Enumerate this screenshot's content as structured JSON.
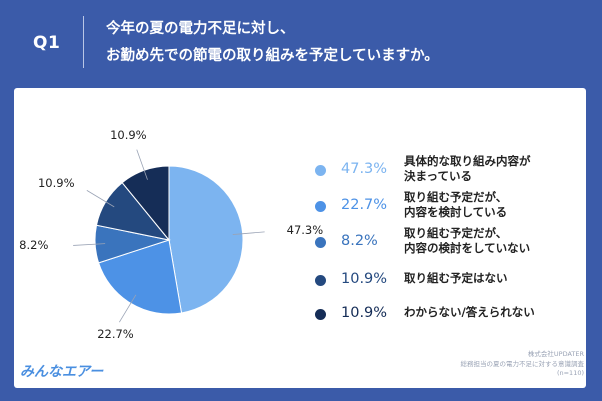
{
  "header": {
    "q_label": "Q1",
    "question_line1": "今年の夏の電力不足に対し、",
    "question_line2": "お勤め先での節電の取り組みを予定していますか。"
  },
  "colors": {
    "background": "#3b5ba9",
    "card": "#ffffff"
  },
  "chart_data": {
    "type": "pie",
    "categories": [
      "具体的な取り組み内容が決まっている",
      "取り組む予定だが、内容を検討している",
      "取り組む予定だが、内容の検討をしていない",
      "取り組む予定はない",
      "わからない/答えられない"
    ],
    "values": [
      47.3,
      22.7,
      8.2,
      10.9,
      10.9
    ],
    "labels": [
      "47.3%",
      "22.7%",
      "8.2%",
      "10.9%",
      "10.9%"
    ],
    "colors": [
      "#7cb4f0",
      "#4d92e6",
      "#3a74bd",
      "#24497f",
      "#152d57"
    ],
    "start": "top",
    "direction": "clockwise",
    "legend_position": "right"
  },
  "legend": {
    "items": [
      {
        "pct": "47.3%",
        "line1": "具体的な取り組み内容が",
        "line2": "決まっている"
      },
      {
        "pct": "22.7%",
        "line1": "取り組む予定だが、",
        "line2": "内容を検討している"
      },
      {
        "pct": "8.2%",
        "line1": "取り組む予定だが、",
        "line2": "内容の検討をしていない"
      },
      {
        "pct": "10.9%",
        "line1": "取り組む予定はない",
        "line2": ""
      },
      {
        "pct": "10.9%",
        "line1": "わからない/答えられない",
        "line2": ""
      }
    ]
  },
  "footer": {
    "logo_text": "みんなエアー",
    "source_line1": "株式会社UPDATER",
    "source_line2": "総務担当の夏の電力不足に対する意識調査",
    "source_line3": "(n=110)"
  }
}
